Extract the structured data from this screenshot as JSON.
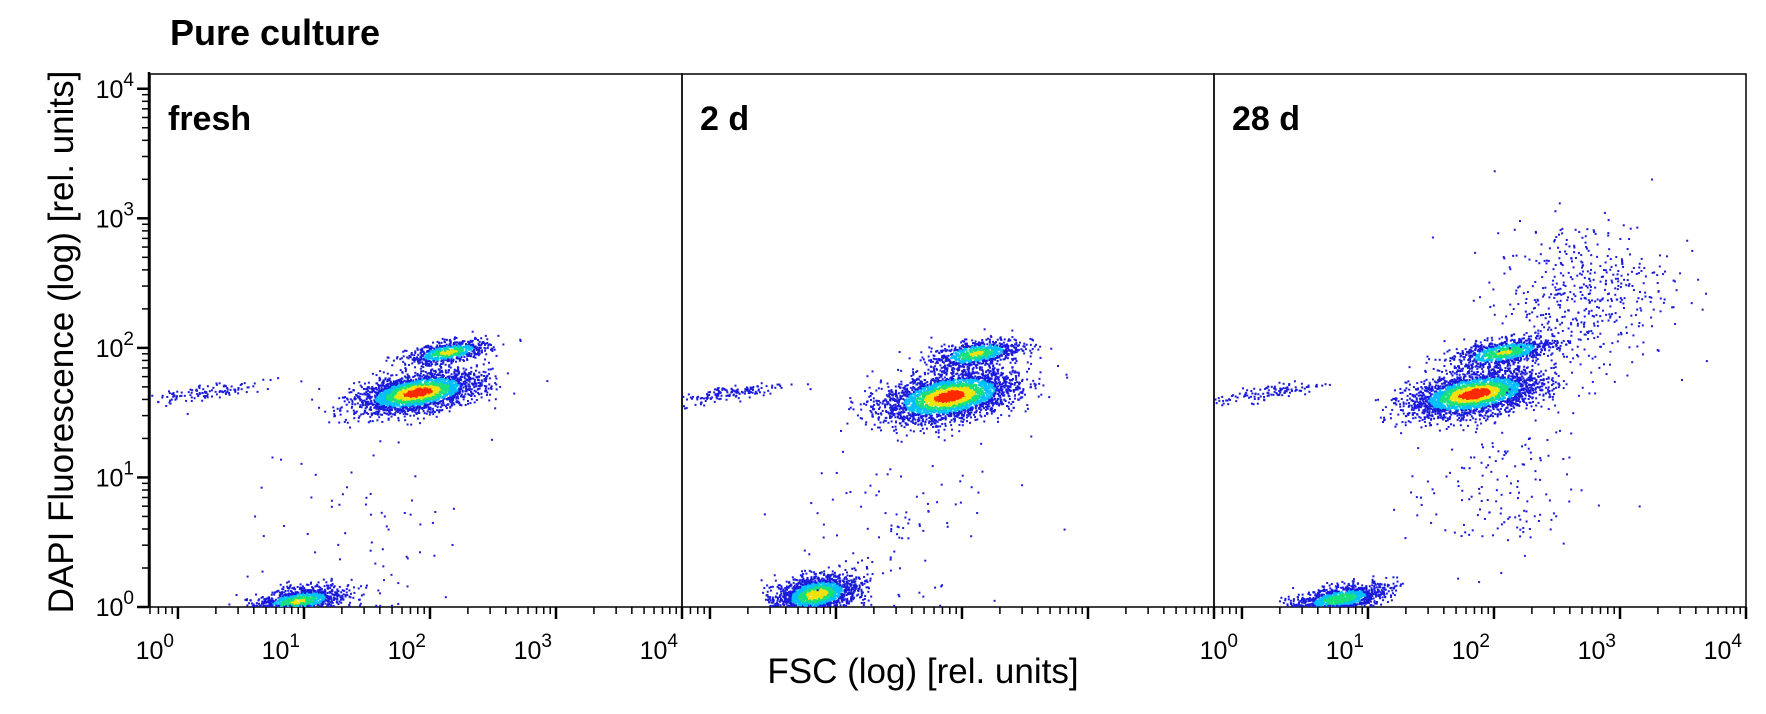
{
  "title": "Pure culture",
  "ylabel": "DAPI Fluorescence (log) [rel. units]",
  "xlabel": "FSC (log) [rel. units]",
  "colors": {
    "density_low": "#1a1adb",
    "density_mid": "#00bfff",
    "density_mid2": "#19e07a",
    "density_high": "#f2e20c",
    "density_peak": "#ff2a00",
    "frame": "#000000"
  },
  "chart_data": {
    "type": "scatter",
    "subtype": "flow cytometry density dot plot",
    "xscale": "log",
    "yscale": "log",
    "xlim": [
      0.6,
      10000
    ],
    "ylim": [
      1,
      13000
    ],
    "y_tick_labels": [
      {
        "base": "10",
        "exp": "0",
        "value": 1
      },
      {
        "base": "10",
        "exp": "1",
        "value": 10
      },
      {
        "base": "10",
        "exp": "2",
        "value": 100
      },
      {
        "base": "10",
        "exp": "3",
        "value": 1000
      },
      {
        "base": "10",
        "exp": "4",
        "value": 10000
      }
    ],
    "x_tick_labels": [
      {
        "base": "10",
        "exp": "0",
        "value": 1
      },
      {
        "base": "10",
        "exp": "1",
        "value": 10
      },
      {
        "base": "10",
        "exp": "2",
        "value": 100
      },
      {
        "base": "10",
        "exp": "3",
        "value": 1000
      },
      {
        "base": "10",
        "exp": "4",
        "value": 10000
      }
    ],
    "panels": [
      {
        "label": "fresh",
        "show_x_tick_labels": true,
        "populations": [
          {
            "x": 80,
            "y": 45,
            "sx": 0.24,
            "sy": 0.07,
            "n": 2600,
            "peak": 1.0
          },
          {
            "x": 140,
            "y": 92,
            "sx": 0.16,
            "sy": 0.04,
            "n": 700,
            "peak": 0.75
          },
          {
            "x": 9,
            "y": 1.1,
            "sx": 0.18,
            "sy": 0.05,
            "n": 1200,
            "peak": 0.7
          },
          {
            "x": 1.6,
            "y": 45,
            "sx": 0.22,
            "sy": 0.03,
            "n": 120,
            "peak": 0.15
          },
          {
            "x": 30,
            "y": 4,
            "sx": 0.4,
            "sy": 0.4,
            "n": 80,
            "peak": 0.05
          }
        ]
      },
      {
        "label": "2 d",
        "show_x_tick_labels": false,
        "populations": [
          {
            "x": 80,
            "y": 42,
            "sx": 0.26,
            "sy": 0.09,
            "n": 3000,
            "peak": 1.0
          },
          {
            "x": 130,
            "y": 90,
            "sx": 0.18,
            "sy": 0.05,
            "n": 800,
            "peak": 0.7
          },
          {
            "x": 7,
            "y": 1.25,
            "sx": 0.16,
            "sy": 0.07,
            "n": 1700,
            "peak": 0.8
          },
          {
            "x": 1.5,
            "y": 45,
            "sx": 0.22,
            "sy": 0.03,
            "n": 150,
            "peak": 0.15
          },
          {
            "x": 30,
            "y": 5,
            "sx": 0.45,
            "sy": 0.45,
            "n": 110,
            "peak": 0.05
          }
        ]
      },
      {
        "label": "28 d",
        "show_x_tick_labels": true,
        "populations": [
          {
            "x": 70,
            "y": 44,
            "sx": 0.26,
            "sy": 0.08,
            "n": 2800,
            "peak": 1.0
          },
          {
            "x": 120,
            "y": 92,
            "sx": 0.2,
            "sy": 0.05,
            "n": 900,
            "peak": 0.7
          },
          {
            "x": 6,
            "y": 1.15,
            "sx": 0.18,
            "sy": 0.05,
            "n": 1100,
            "peak": 0.65
          },
          {
            "x": 1.6,
            "y": 45,
            "sx": 0.22,
            "sy": 0.03,
            "n": 120,
            "peak": 0.15
          },
          {
            "x": 500,
            "y": 250,
            "sx": 0.35,
            "sy": 0.3,
            "n": 500,
            "peak": 0.1
          },
          {
            "x": 100,
            "y": 8,
            "sx": 0.35,
            "sy": 0.3,
            "n": 150,
            "peak": 0.05
          }
        ]
      }
    ]
  }
}
